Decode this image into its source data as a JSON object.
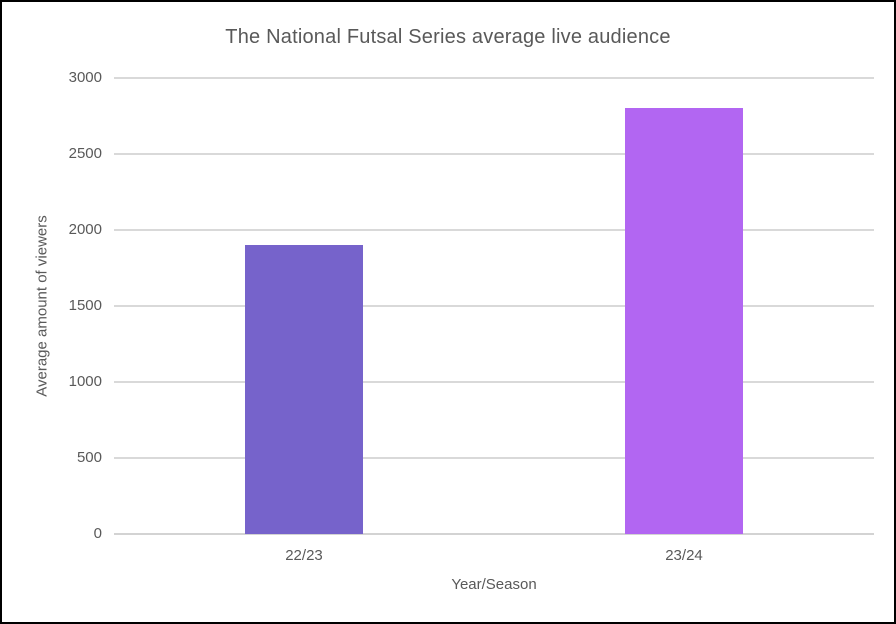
{
  "frame": {
    "background_color": "#ffffff",
    "border_color": "#000000"
  },
  "chart_data": {
    "type": "bar",
    "title": "The National Futsal Series average live audience",
    "xlabel": "Year/Season",
    "ylabel": "Average amount of viewers",
    "categories": [
      "22/23",
      "23/24"
    ],
    "values": [
      1900,
      2800
    ],
    "bar_colors": [
      "#7663CB",
      "#B266F2"
    ],
    "ylim": [
      0,
      3000
    ],
    "ytick_step": 500,
    "yticks": [
      0,
      500,
      1000,
      1500,
      2000,
      2500,
      3000
    ],
    "grid": "horizontal",
    "gridline_color": "#D9D9D9",
    "text_color": "#595959",
    "legend": "none"
  }
}
